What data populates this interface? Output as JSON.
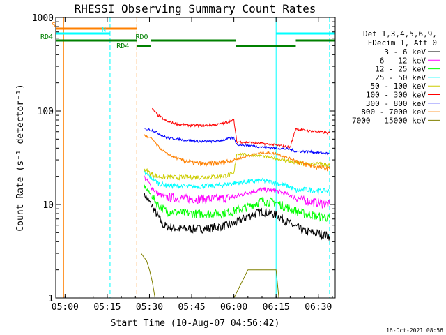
{
  "chart_data": {
    "type": "line",
    "title": "RHESSI Observing Summary Count Rates",
    "xlabel": "Start Time (10-Aug-07 04:56:42)",
    "ylabel": "Count Rate (s⁻¹ detector⁻¹)",
    "x_ticks": [
      "05:00",
      "05:15",
      "05:30",
      "05:45",
      "06:00",
      "06:15",
      "06:30"
    ],
    "y_ticks": [
      "1",
      "10",
      "100",
      "1000"
    ],
    "y_scale": "log",
    "xlim": [
      "04:56:42",
      "06:36:00"
    ],
    "ylim": [
      1,
      1000
    ],
    "legend_header": [
      "Det 1,3,4,5,6,9,",
      "FDecim 1, Att 0"
    ],
    "legend_position": "right",
    "footer": "16-Oct-2021 08:56",
    "series": [
      {
        "name": "3 - 6 keV",
        "color": "#000000",
        "t": [
          "05:28",
          "05:31",
          "05:33",
          "05:35",
          "05:40",
          "05:50",
          "06:00",
          "06:05",
          "06:10",
          "06:15",
          "06:20",
          "06:25",
          "06:30",
          "06:34"
        ],
        "values": [
          13,
          9.5,
          7.5,
          6,
          5.5,
          5.5,
          6.2,
          7.5,
          8.5,
          7.8,
          6.2,
          5.2,
          4.9,
          4.6
        ]
      },
      {
        "name": "6 - 12 keV",
        "color": "#ff00ff",
        "t": [
          "05:28",
          "05:31",
          "05:33",
          "05:36",
          "05:45",
          "05:55",
          "06:00",
          "06:05",
          "06:10",
          "06:15",
          "06:20",
          "06:25",
          "06:30",
          "06:34"
        ],
        "values": [
          20,
          15,
          13,
          12,
          11.5,
          11.5,
          12,
          13.5,
          14.5,
          14,
          12.5,
          11,
          10.5,
          10
        ]
      },
      {
        "name": "12 - 25 keV",
        "color": "#00ff00",
        "t": [
          "05:28",
          "05:31",
          "05:33",
          "05:36",
          "05:45",
          "05:55",
          "06:00",
          "06:05",
          "06:10",
          "06:15",
          "06:20",
          "06:25",
          "06:30",
          "06:34"
        ],
        "values": [
          16,
          12,
          10,
          8.5,
          8,
          8,
          8.5,
          9.5,
          11,
          10.5,
          9,
          8,
          7.5,
          7.2
        ]
      },
      {
        "name": "25 - 50 keV",
        "color": "#00ffff",
        "t": [
          "05:28",
          "05:31",
          "05:33",
          "05:36",
          "05:45",
          "05:55",
          "06:00",
          "06:05",
          "06:10",
          "06:15",
          "06:20",
          "06:22",
          "06:25",
          "06:30",
          "06:34"
        ],
        "values": [
          22,
          19,
          17,
          16,
          15.5,
          16,
          17,
          17.5,
          18,
          17,
          15.5,
          14,
          14.5,
          14,
          14
        ]
      },
      {
        "name": "50 - 100 keV",
        "color": "#cccc00",
        "t": [
          "05:28",
          "05:31",
          "05:33",
          "05:36",
          "05:45",
          "05:55",
          "06:00",
          "06:01",
          "06:05",
          "06:10",
          "06:15",
          "06:20",
          "06:22",
          "06:25",
          "06:30",
          "06:34"
        ],
        "values": [
          24,
          21,
          20,
          19.5,
          19.5,
          20,
          21,
          35,
          34,
          33,
          31,
          29,
          28,
          27,
          27,
          26.5
        ]
      },
      {
        "name": "100 - 300 keV",
        "color": "#ff0000",
        "t": [
          "05:31",
          "05:33",
          "05:36",
          "05:40",
          "05:45",
          "05:50",
          "05:55",
          "06:00",
          "06:01",
          "06:05",
          "06:10",
          "06:15",
          "06:20",
          "06:22",
          "06:25",
          "06:30",
          "06:34"
        ],
        "values": [
          105,
          90,
          78,
          72,
          70,
          70,
          72,
          80,
          47,
          46,
          45,
          43,
          41,
          65,
          62,
          60,
          58
        ]
      },
      {
        "name": "300 - 800 keV",
        "color": "#0000ff",
        "t": [
          "05:28",
          "05:31",
          "05:33",
          "05:36",
          "05:40",
          "05:45",
          "05:50",
          "05:55",
          "06:00",
          "06:01",
          "06:05",
          "06:10",
          "06:15",
          "06:20",
          "06:22",
          "06:25",
          "06:30",
          "06:34"
        ],
        "values": [
          65,
          62,
          58,
          52,
          50,
          48,
          47,
          48,
          52,
          44,
          43,
          41,
          40,
          39,
          37,
          37,
          36,
          35
        ]
      },
      {
        "name": "800 - 7000 keV",
        "color": "#ff8000",
        "t": [
          "05:28",
          "05:31",
          "05:33",
          "05:36",
          "05:40",
          "05:45",
          "05:50",
          "05:55",
          "06:00",
          "06:05",
          "06:10",
          "06:15",
          "06:20",
          "06:25",
          "06:30",
          "06:34"
        ],
        "values": [
          55,
          50,
          42,
          35,
          31,
          28,
          27,
          28,
          30,
          33,
          36,
          35,
          31,
          27,
          25,
          24
        ]
      },
      {
        "name": "7000 - 15000 keV",
        "color": "#808000",
        "t": [
          "05:27",
          "05:29",
          "05:30",
          "05:31",
          "05:32",
          "06:00",
          "06:05",
          "06:10",
          "06:15",
          "06:16"
        ],
        "values": [
          3,
          2.5,
          2,
          1.5,
          1,
          1,
          2,
          2,
          2,
          1
        ]
      }
    ],
    "annotations": [
      {
        "label": "S",
        "color": "#ff8000",
        "from": "04:56:42",
        "to": "05:25:30",
        "level": "top"
      },
      {
        "label": "N",
        "color": "#00ffff",
        "from": "04:56:42",
        "to": "05:16",
        "level": "upper"
      },
      {
        "label": "",
        "color": "#00ffff",
        "from": "06:15",
        "to": "06:36",
        "level": "upper"
      },
      {
        "label": "RD4",
        "color": "#008000",
        "from": "04:56:42",
        "to": "05:25:30",
        "level": "lower"
      },
      {
        "label": "RD4",
        "color": "#008000",
        "from": "05:25:30",
        "to": "05:30:30",
        "level": "lowest"
      },
      {
        "label": "RD0",
        "color": "#008000",
        "from": "05:30:30",
        "to": "06:00:40",
        "level": "lower"
      },
      {
        "label": "",
        "color": "#008000",
        "from": "06:00:40",
        "to": "06:22",
        "level": "lowest"
      },
      {
        "label": "",
        "color": "#008000",
        "from": "06:22",
        "to": "06:36",
        "level": "lower"
      }
    ],
    "vertical_lines": [
      {
        "t": "04:59:30",
        "color": "#ff8000",
        "style": "solid"
      },
      {
        "t": "05:16",
        "color": "#00ffff",
        "style": "dashed"
      },
      {
        "t": "05:25:30",
        "color": "#ff8000",
        "style": "dashed"
      },
      {
        "t": "06:15",
        "color": "#00ffff",
        "style": "solid"
      },
      {
        "t": "06:34",
        "color": "#00ffff",
        "style": "dashed"
      }
    ]
  }
}
